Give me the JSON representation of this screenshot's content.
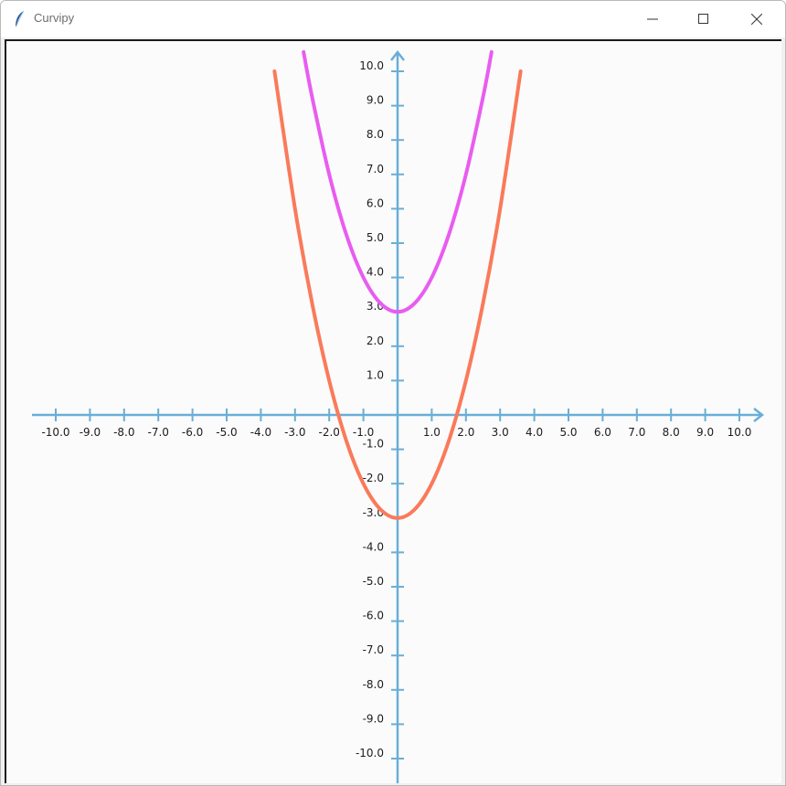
{
  "window": {
    "title": "Curvipy",
    "app_icon": "feather-icon",
    "controls": [
      "minimize-icon",
      "maximize-icon",
      "close-icon"
    ]
  },
  "colors": {
    "axis": "#6aaed6",
    "curve_1": "#fa7a5a",
    "curve_2": "#e95cf0",
    "background": "#fbfbfb"
  },
  "chart_data": {
    "type": "line",
    "xlim": [
      -10,
      10
    ],
    "ylim": [
      -10,
      10
    ],
    "x_ticks": [
      "-10.0",
      "-9.0",
      "-8.0",
      "-7.0",
      "-6.0",
      "-5.0",
      "-4.0",
      "-3.0",
      "-2.0",
      "-1.0",
      "1.0",
      "2.0",
      "3.0",
      "4.0",
      "5.0",
      "6.0",
      "7.0",
      "8.0",
      "9.0",
      "10.0"
    ],
    "y_ticks": [
      "10.0",
      "9.0",
      "8.0",
      "7.0",
      "6.0",
      "5.0",
      "4.0",
      "3.0",
      "2.0",
      "1.0",
      "-1.0",
      "-2.0",
      "-3.0",
      "-4.0",
      "-5.0",
      "-6.0",
      "-7.0",
      "-8.0",
      "-9.0",
      "-10.0"
    ],
    "series": [
      {
        "color": "#fa7a5a",
        "x": [
          -3.6,
          -3.0,
          -2.5,
          -2.0,
          -1.5,
          -1.0,
          -0.5,
          0.0,
          0.5,
          1.0,
          1.5,
          2.0,
          2.5,
          3.0,
          3.6
        ],
        "y": [
          10.0,
          6.0,
          3.25,
          1.0,
          -0.75,
          -2.0,
          -2.75,
          -3.0,
          -2.75,
          -2.0,
          -0.75,
          1.0,
          3.25,
          6.0,
          10.0
        ]
      },
      {
        "color": "#e95cf0",
        "x": [
          -2.75,
          -2.5,
          -2.0,
          -1.5,
          -1.0,
          -0.5,
          0.0,
          0.5,
          1.0,
          1.5,
          2.0,
          2.5,
          2.75
        ],
        "y": [
          10.56,
          9.25,
          7.0,
          5.25,
          4.0,
          3.25,
          3.0,
          3.25,
          4.0,
          5.25,
          7.0,
          9.25,
          10.56
        ]
      }
    ]
  }
}
